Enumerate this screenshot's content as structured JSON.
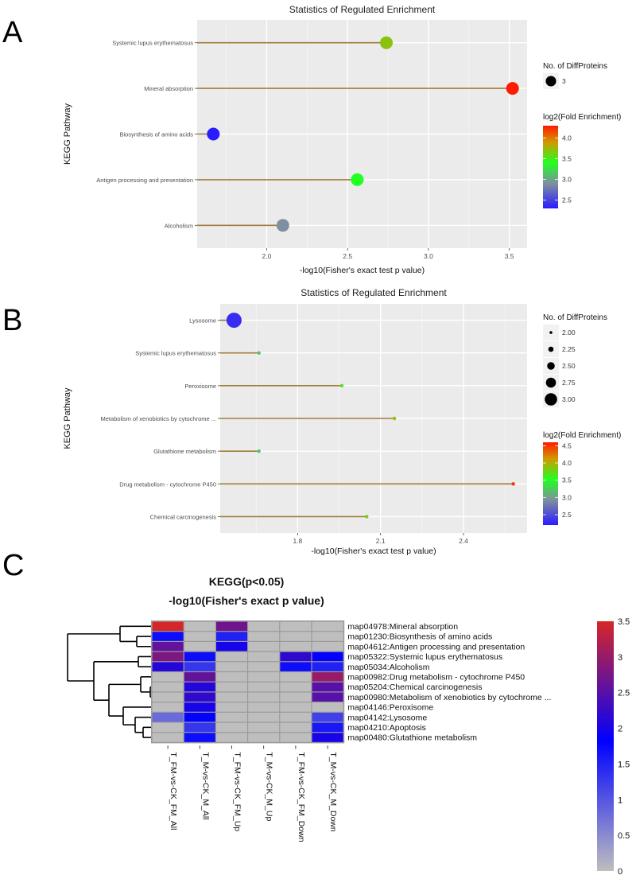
{
  "panels": [
    "A",
    "B",
    "C"
  ],
  "chart_data": [
    {
      "id": "A",
      "type": "scatter",
      "subtype": "lollipop",
      "title": "Statistics of Regulated Enrichment",
      "xlabel": "-log10(Fisher's exact test p value)",
      "ylabel": "KEGG Pathway",
      "xlim": [
        1.57,
        3.61
      ],
      "xticks": [
        2.0,
        2.5,
        3.0,
        3.5
      ],
      "xtick_labels": [
        "2.0",
        "2.5",
        "3.0",
        "3.5"
      ],
      "grid": true,
      "categories": [
        "Systemic lupus erythematosus",
        "Mineral absorption",
        "Biosynthesis of amino acids",
        "Antigen processing and presentation",
        "Alcoholism"
      ],
      "x": [
        2.74,
        3.52,
        1.67,
        2.56,
        2.1
      ],
      "size": [
        3,
        3,
        3,
        3,
        3
      ],
      "color_value": [
        3.7,
        4.3,
        2.3,
        3.4,
        2.9
      ],
      "size_legend": {
        "title": "No. of DiffProteins",
        "values": [
          3
        ],
        "labels": [
          "3"
        ]
      },
      "color_legend": {
        "title": "log2(Fold Enrichment)",
        "range": [
          2.3,
          4.3
        ],
        "ticks": [
          4.0,
          3.5,
          3.0,
          2.5
        ],
        "tick_labels": [
          "4.0",
          "3.5",
          "3.0",
          "2.5"
        ]
      },
      "legend_position": "right"
    },
    {
      "id": "B",
      "type": "scatter",
      "subtype": "lollipop",
      "title": "Statistics of Regulated Enrichment",
      "xlabel": "-log10(Fisher's exact test p value)",
      "ylabel": "KEGG Pathway",
      "xlim": [
        1.52,
        2.63
      ],
      "xticks": [
        1.8,
        2.1,
        2.4
      ],
      "xtick_labels": [
        "1.8",
        "2.1",
        "2.4"
      ],
      "grid": true,
      "categories": [
        "Lysosome",
        "Systemic lupus erythematosus",
        "Peroxisome",
        "Metabolism of xenobiotics by cytochrome ...",
        "Glutathione metabolism",
        "Drug metabolism - cytochrome P450",
        "Chemical carcinogenesis"
      ],
      "x": [
        1.57,
        1.66,
        1.96,
        2.15,
        1.66,
        2.58,
        2.05
      ],
      "size": [
        3.0,
        2.0,
        2.0,
        2.0,
        2.0,
        2.0,
        2.0
      ],
      "color_value": [
        2.3,
        3.2,
        3.7,
        3.9,
        3.2,
        4.5,
        3.8
      ],
      "size_legend": {
        "title": "No. of DiffProteins",
        "values": [
          2.0,
          2.25,
          2.5,
          2.75,
          3.0
        ],
        "labels": [
          "2.00",
          "2.25",
          "2.50",
          "2.75",
          "3.00"
        ]
      },
      "color_legend": {
        "title": "log2(Fold Enrichment)",
        "range": [
          2.2,
          4.6
        ],
        "ticks": [
          4.5,
          4.0,
          3.5,
          3.0,
          2.5
        ],
        "tick_labels": [
          "4.5",
          "4.0",
          "3.5",
          "3.0",
          "2.5"
        ]
      },
      "legend_position": "right"
    },
    {
      "id": "C",
      "type": "heatmap",
      "title": "KEGG(p<0.05)",
      "subtitle": "-log10(Fisher's exact p value)",
      "columns": [
        "T_FM-vs-CK_FM_All",
        "T_M-vs-CK_M_All",
        "T_FM-vs-CK_FM_Up",
        "T_M-vs-CK_M_Up",
        "T_FM-vs-CK_FM_Down",
        "T_M-vs-CK_M_Down"
      ],
      "rows": [
        "map04978:Mineral absorption",
        "map01230:Biosynthesis of amino acids",
        "map04612:Antigen processing and presentation",
        "map05322:Systemic lupus erythematosus",
        "map05034:Alcoholism",
        "map00982:Drug metabolism - cytochrome P450",
        "map05204:Chemical carcinogenesis",
        "map00980:Metabolism of xenobiotics by cytochrome ...",
        "map04146:Peroxisome",
        "map04142:Lysosome",
        "map04210:Apoptosis",
        "map00480:Glutathione metabolism"
      ],
      "values": [
        [
          3.5,
          0,
          2.7,
          0,
          0,
          0
        ],
        [
          1.7,
          0,
          1.5,
          0,
          0,
          0
        ],
        [
          2.6,
          0,
          2.0,
          0,
          0,
          0
        ],
        [
          2.8,
          1.7,
          0,
          0,
          2.2,
          1.8
        ],
        [
          2.1,
          1.3,
          0,
          0,
          1.7,
          1.5
        ],
        [
          0,
          2.6,
          0,
          0,
          0,
          3.0
        ],
        [
          0,
          2.1,
          0,
          0,
          0,
          2.5
        ],
        [
          0,
          2.2,
          0,
          0,
          0,
          2.5
        ],
        [
          0,
          2.0,
          0,
          0,
          0,
          0
        ],
        [
          0.8,
          1.8,
          0,
          0,
          0,
          1.2
        ],
        [
          0,
          1.3,
          0,
          0,
          0,
          1.6
        ],
        [
          0,
          1.7,
          0,
          0,
          0,
          2.0
        ]
      ],
      "color_scale": {
        "range": [
          0,
          3.5
        ],
        "ticks": [
          3.5,
          3,
          2.5,
          2,
          1.5,
          1,
          0.5,
          0
        ],
        "tick_labels": [
          "3.5",
          "3",
          "2.5",
          "2",
          "1.5",
          "1",
          "0.5",
          "0"
        ],
        "colors": [
          "#bebebe",
          "#0000ff",
          "#d62728"
        ]
      },
      "dendrogram": "rows"
    }
  ]
}
